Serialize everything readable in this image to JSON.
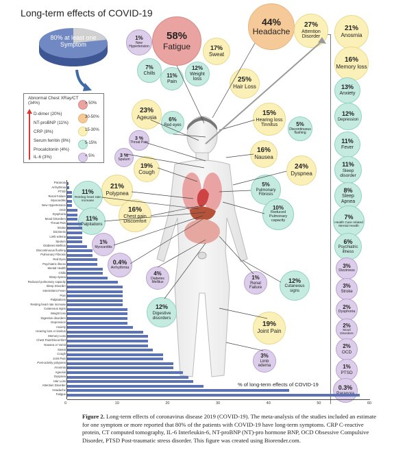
{
  "title": "Long-term effects of COVID-19",
  "pie": {
    "label": "80% at least one Symptom"
  },
  "biomarkers": {
    "heading": "Abnormal Chest XRay/CT (34%)",
    "items": [
      "D-dimer (20%)",
      "NT-proBNP (11%)",
      "CRP (8%)",
      "Serum ferritin (8%)",
      "Procalcitonin (4%)",
      "IL-6 (3%)"
    ]
  },
  "legend": [
    "> 50%",
    "30-50%",
    "15-30%",
    "5-15%",
    "< 5%"
  ],
  "colors": {
    "red": "#e9a3a0",
    "orange": "#f6ca98",
    "yellow": "#fbf0b8",
    "green": "#c5ebe1",
    "purple": "#dccdea",
    "bar": "#5b73b5"
  },
  "bubbles": [
    {
      "pct": "58%",
      "label": "Fatigue"
    },
    {
      "pct": "44%",
      "label": "Headache"
    },
    {
      "pct": "27%",
      "label": "Attention Disorder"
    },
    {
      "pct": "21%",
      "label": "Anosmia"
    },
    {
      "pct": "1%",
      "label": "New Hypertension"
    },
    {
      "pct": "17%",
      "label": "Sweat"
    },
    {
      "pct": "7%",
      "label": "Chills"
    },
    {
      "pct": "11%",
      "label": "Pain"
    },
    {
      "pct": "12%",
      "label": "Weight loss"
    },
    {
      "pct": "16%",
      "label": "Memory loss"
    },
    {
      "pct": "25%",
      "label": "Hair Loss"
    },
    {
      "pct": "13%",
      "label": "Anxiety"
    },
    {
      "pct": "23%",
      "label": "Ageusia"
    },
    {
      "pct": "6%",
      "label": "Red eyes"
    },
    {
      "pct": "15%",
      "label": "Hearing loss Tinnitus"
    },
    {
      "pct": "5%",
      "label": "Discontinuous flushing"
    },
    {
      "pct": "12%",
      "label": "Depression"
    },
    {
      "pct": "3 %",
      "label": "Throat Pain"
    },
    {
      "pct": "3 %",
      "label": "Sputum"
    },
    {
      "pct": "19%",
      "label": "Cough"
    },
    {
      "pct": "16%",
      "label": "Nausea"
    },
    {
      "pct": "24%",
      "label": "Dyspnea"
    },
    {
      "pct": "11%",
      "label": "Fever"
    },
    {
      "pct": "11%",
      "label": "Sleep disorder"
    },
    {
      "pct": "21%",
      "label": "Polypnea"
    },
    {
      "pct": "5%",
      "label": "Pulmonary Fibrosis"
    },
    {
      "pct": "11%",
      "label": "Resting heart rate increase"
    },
    {
      "pct": "8%",
      "label": "Sleep Apnea"
    },
    {
      "pct": "16%",
      "label": "Chest pain Discomfort"
    },
    {
      "pct": "10%",
      "label": "Reduced Pulmonary capacity"
    },
    {
      "pct": "11%",
      "label": "Palpitations"
    },
    {
      "pct": "7%",
      "label": "Health Care related Mental Health"
    },
    {
      "pct": "1%",
      "label": "Myocarditis"
    },
    {
      "pct": "6%",
      "label": "Psychiatric illness"
    },
    {
      "pct": "0.4%",
      "label": "Arrhythmia"
    },
    {
      "pct": "3%",
      "label": "Dizziness"
    },
    {
      "pct": "4%",
      "label": "Diabetes Mellitus"
    },
    {
      "pct": "1%",
      "label": "Renal Failure"
    },
    {
      "pct": "12%",
      "label": "Cutaneous signs"
    },
    {
      "pct": "3%",
      "label": "Stroke"
    },
    {
      "pct": "12%",
      "label": "Digestive disorders"
    },
    {
      "pct": "2%",
      "label": "Dysphoria"
    },
    {
      "pct": "2%",
      "label": "Mood Disorders"
    },
    {
      "pct": "19%",
      "label": "Joint Pain"
    },
    {
      "pct": "2%",
      "label": "OCD"
    },
    {
      "pct": "3%",
      "label": "Limb edema"
    },
    {
      "pct": "1%",
      "label": "PTSD"
    },
    {
      "pct": "0.3%",
      "label": "Paranoia"
    }
  ],
  "chart_data": {
    "type": "bar",
    "orientation": "horizontal",
    "xlabel": "% of long-term effects of COVID-19",
    "xlim": [
      0,
      60
    ],
    "xticks": [
      "0",
      "10",
      "20",
      "30",
      "40",
      "50",
      "60"
    ],
    "categories": [
      "Paranoia",
      "Arrhythmia",
      "PTSD",
      "Renal Failure",
      "Myocarditis",
      "New Hypertension",
      "OCD",
      "Dysphoria",
      "Mood Disorders",
      "Throat Pain",
      "Stroke",
      "Dizziness",
      "Limb edema",
      "Sputum",
      "Diabetes Mellitus",
      "Discontinuous flushing",
      "Pulmonary Fibrosis",
      "Red Eyes",
      "Psychiatric illness",
      "Mental Health",
      "Chills",
      "Sleep Apnea",
      "Reduced pulmonary capacity",
      "Sleep Disorder",
      "Intermittent Fever",
      "Pain",
      "Palpitations",
      "Resting heart rate increase",
      "Cutaneous signs",
      "Weight loss",
      "Digestive disorders",
      "Depression",
      "Anxiety",
      "Hearing loss or tinnitus",
      "Memory Loss",
      "Chest Pain/Discomfort",
      "Nausea or Vomit",
      "Sweat",
      "Cough",
      "Joint Pain",
      "Post-activity polypnea",
      "Anosmia",
      "Ageusia",
      "Dyspnea",
      "Hair Loss",
      "Attention Disorder",
      "Headache",
      "Fatigue"
    ],
    "values": [
      0.3,
      0.4,
      1,
      1,
      1,
      1,
      2,
      2,
      2,
      3,
      3,
      3,
      3,
      3,
      4,
      5,
      5,
      6,
      6,
      7,
      7,
      8,
      10,
      11,
      11,
      11,
      11,
      11,
      12,
      12,
      12,
      12,
      13,
      15,
      16,
      16,
      16,
      17,
      19,
      19,
      21,
      21,
      23,
      24,
      25,
      27,
      44,
      58
    ]
  },
  "caption": {
    "label": "Figure 2.",
    "text": "Long-term effects of coronavirus disease 2019 (COVID-19). The meta-analysis of the studies included an estimate for one symptom or more reported that 80% of the patients with COVID-19 have long-term symptoms. CRP C-reactive protein, CT computed tomography, IL-6 Interleukin-6, NT-proBNP (NT)-pro hormone BNP, OCD Obsessive Compulsive Disorder, PTSD Post-traumatic stress disorder. This figure was created using Biorender.com."
  }
}
